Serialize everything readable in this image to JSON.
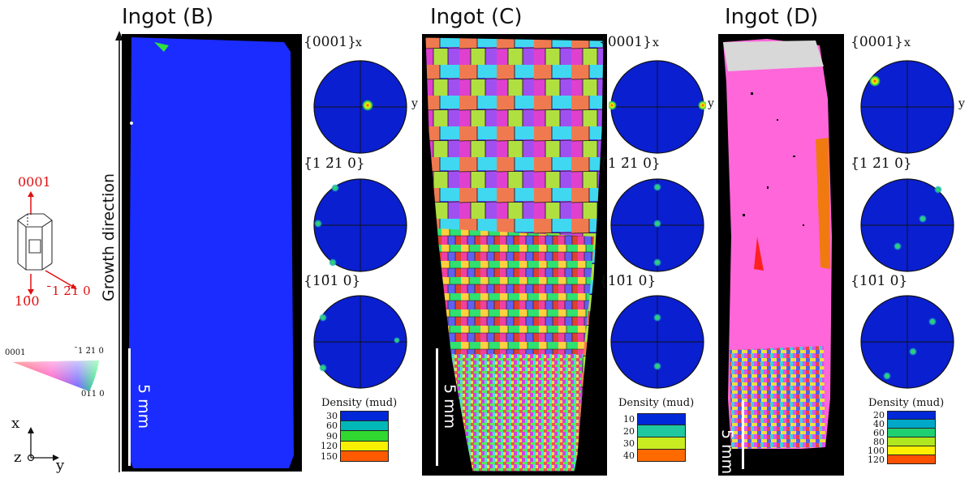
{
  "left_panel": {
    "crystal_labels": {
      "top": "0001",
      "bottom": "10̄0",
      "right": "̄1 2̄1 0"
    },
    "ipf_key": {
      "top_left": "0001",
      "top_right": "̄1 2̄1 0",
      "bottom_right": "01̄1 0"
    },
    "axes": {
      "x": "x",
      "y": "y",
      "z": "z"
    }
  },
  "growth_direction_label": "Growth direction",
  "panels": [
    {
      "title": "Ingot (B)",
      "scale_label": "5 mm",
      "pole_figures": [
        {
          "label": "{0001}",
          "x": "x",
          "y": "y"
        },
        {
          "label": "{̄1 2̄1 0}"
        },
        {
          "label": "{10̄1 0}"
        }
      ],
      "density": {
        "title": "Density (mud)",
        "values": [
          "30",
          "60",
          "90",
          "120",
          "150"
        ]
      }
    },
    {
      "title": "Ingot (C)",
      "scale_label": "5 mm",
      "pole_figures": [
        {
          "label": "{0001}",
          "x": "x",
          "y": "y"
        },
        {
          "label": "{̄1 2̄1 0}"
        },
        {
          "label": "{10̄1 0}"
        }
      ],
      "density": {
        "title": "Density (mud)",
        "values": [
          "10",
          "20",
          "30",
          "40"
        ]
      }
    },
    {
      "title": "Ingot (D)",
      "scale_label": "5 mm",
      "pole_figures": [
        {
          "label": "{0001}",
          "x": "x",
          "y": "y"
        },
        {
          "label": "{̄1 2̄1 0}"
        },
        {
          "label": "{10̄1 0}"
        }
      ],
      "density": {
        "title": "Density (mud)",
        "values": [
          "20",
          "40",
          "60",
          "80",
          "100",
          "120"
        ]
      }
    }
  ],
  "colors": {
    "pf_background": "#0a1fd0",
    "map_b": "#1a2cff",
    "map_d": "#ff66d9",
    "arrow": "#e01010",
    "legend_gradient": [
      "#002bd8",
      "#00b8c8",
      "#33dd33",
      "#ffff00",
      "#ff5500"
    ]
  }
}
